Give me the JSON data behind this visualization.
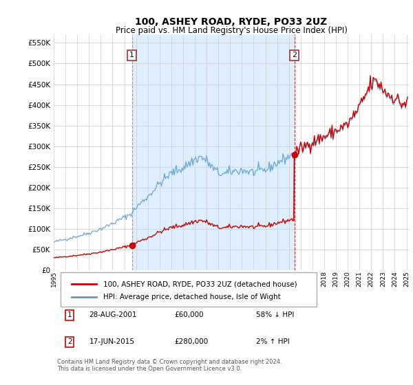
{
  "title1": "100, ASHEY ROAD, RYDE, PO33 2UZ",
  "title2": "Price paid vs. HM Land Registry's House Price Index (HPI)",
  "ylim": [
    0,
    570000
  ],
  "yticks": [
    0,
    50000,
    100000,
    150000,
    200000,
    250000,
    300000,
    350000,
    400000,
    450000,
    500000,
    550000
  ],
  "legend_line1": "100, ASHEY ROAD, RYDE, PO33 2UZ (detached house)",
  "legend_line2": "HPI: Average price, detached house, Isle of Wight",
  "sale1_date": "28-AUG-2001",
  "sale1_price": "£60,000",
  "sale1_hpi": "58% ↓ HPI",
  "sale2_date": "17-JUN-2015",
  "sale2_price": "£280,000",
  "sale2_hpi": "2% ↑ HPI",
  "footer": "Contains HM Land Registry data © Crown copyright and database right 2024.\nThis data is licensed under the Open Government Licence v3.0.",
  "line_color_red": "#cc0000",
  "line_color_blue": "#5599cc",
  "shade_color": "#ddeeff",
  "background_color": "#ffffff",
  "grid_color": "#cccccc",
  "sale1_x": 2001.65,
  "sale1_y": 60000,
  "sale2_x": 2015.46,
  "sale2_y": 280000,
  "vline1_x": 2001.65,
  "vline2_x": 2015.46,
  "xlim_left": 1995.0,
  "xlim_right": 2025.2
}
